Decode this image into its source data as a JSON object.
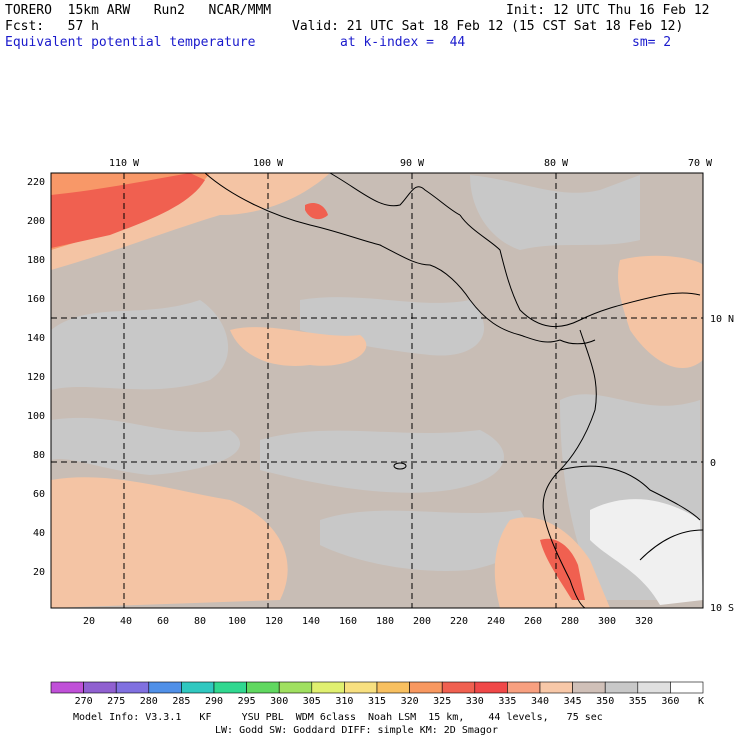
{
  "header": {
    "model": "TORERO  15km ARW   Run2   NCAR/MMM",
    "init": "Init: 12 UTC Thu 16 Feb 12",
    "fcst": "Fcst:   57 h",
    "valid": "Valid: 21 UTC Sat 18 Feb 12 (15 CST Sat 18 Feb 12)",
    "field": "Equivalent potential temperature",
    "level": "at k-index =  44",
    "smooth": "sm= 2"
  },
  "map": {
    "top_lon_labels": [
      "110 W",
      "100 W",
      "90 W",
      "80 W",
      "70 W"
    ],
    "right_lat_labels": [
      "10 N",
      "0",
      "10 S"
    ],
    "y_grid_labels": [
      "220",
      "200",
      "180",
      "160",
      "140",
      "120",
      "100",
      "80",
      "60",
      "40",
      "20"
    ],
    "x_grid_labels": [
      "20",
      "40",
      "60",
      "80",
      "100",
      "120",
      "140",
      "160",
      "180",
      "200",
      "220",
      "240",
      "260",
      "280",
      "300",
      "320"
    ]
  },
  "colorbar": {
    "unit": "K",
    "labels": [
      "270",
      "275",
      "280",
      "285",
      "290",
      "295",
      "300",
      "305",
      "310",
      "315",
      "320",
      "325",
      "330",
      "335",
      "340",
      "345",
      "350",
      "355",
      "360"
    ],
    "colors": [
      "#c050d8",
      "#9060d0",
      "#8070e0",
      "#5090e8",
      "#30c8c0",
      "#30d890",
      "#60d860",
      "#a0e060",
      "#e0f070",
      "#f8e080",
      "#f8c060",
      "#f89860",
      "#f06050",
      "#f04848",
      "#f8a080",
      "#f8c8a8",
      "#d0c0b8",
      "#c8c8c8",
      "#e0e0e0",
      "#ffffff"
    ]
  },
  "footer": {
    "line1": "Model Info: V3.3.1   KF     YSU PBL  WDM 6class  Noah LSM  15 km,    44 levels,   75 sec",
    "line2": "LW: Godd SW: Goddard DIFF: simple KM: 2D Smagor"
  },
  "colors": {
    "background_field": "#c8bdb5",
    "gray_field": "#c8c8c8",
    "warm_field": "#f4c4a4",
    "hot_field": "#f06050",
    "hotter_field": "#f89868",
    "white_field": "#f0f0f0",
    "header_blue": "#1a1acc"
  }
}
